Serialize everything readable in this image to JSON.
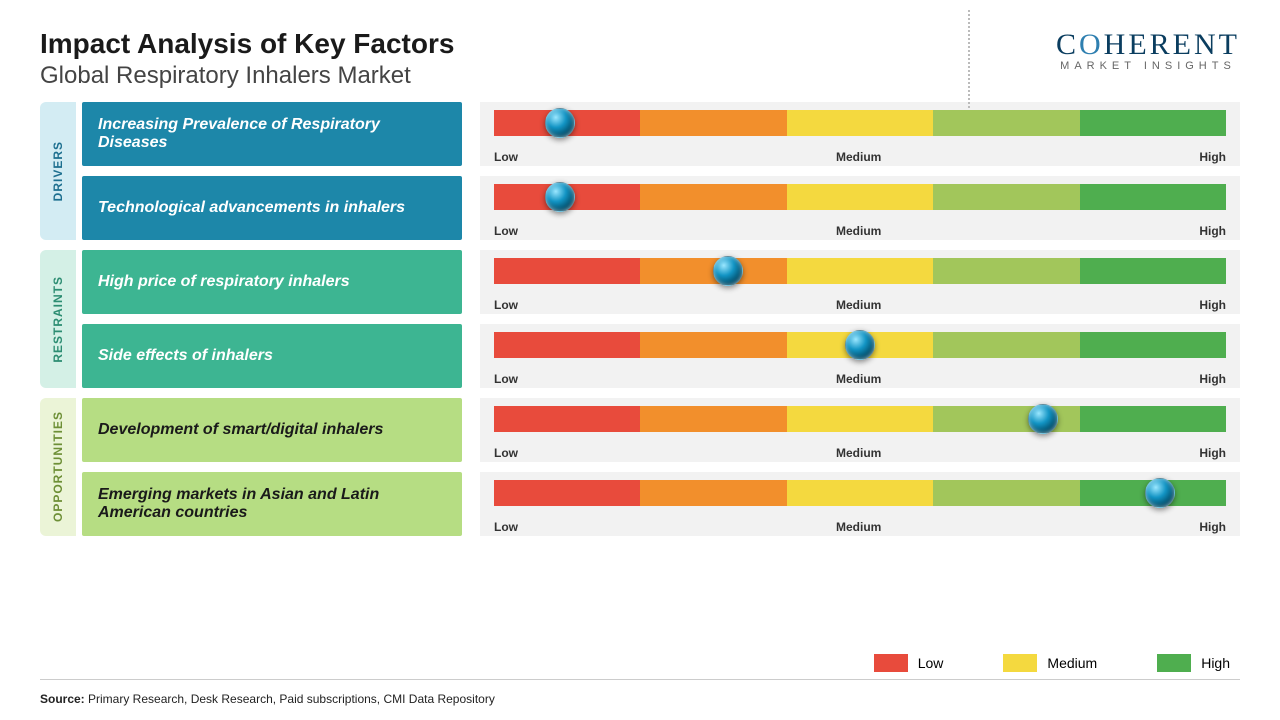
{
  "header": {
    "title": "Impact Analysis of Key Factors",
    "subtitle": "Global Respiratory Inhalers Market"
  },
  "logo": {
    "main": "COHERENT",
    "sub": "MARKET INSIGHTS"
  },
  "scale": {
    "low": "Low",
    "medium": "Medium",
    "high": "High",
    "segment_colors": [
      "#e84b3c",
      "#f28f2c",
      "#f4d93f",
      "#a2c65b",
      "#4fae4f"
    ]
  },
  "categories": [
    {
      "label": "DRIVERS",
      "tab_bg": "#d3ecf3",
      "tab_text": "#1d6f8f",
      "box_bg": "#1d87a9",
      "box_text": "#ffffff",
      "rows": [
        {
          "factor": "Increasing Prevalence of Respiratory Diseases",
          "marker_pct": 9
        },
        {
          "factor": "Technological advancements in inhalers",
          "marker_pct": 9
        }
      ]
    },
    {
      "label": "RESTRAINTS",
      "tab_bg": "#d4f0e6",
      "tab_text": "#2c8d72",
      "box_bg": "#3db592",
      "box_text": "#ffffff",
      "rows": [
        {
          "factor": "High price of respiratory inhalers",
          "marker_pct": 32
        },
        {
          "factor": "Side effects of inhalers",
          "marker_pct": 50
        }
      ]
    },
    {
      "label": "OPPORTUNITIES",
      "tab_bg": "#ebf4d7",
      "tab_text": "#6d8f36",
      "box_bg": "#b6dd83",
      "box_text": "#1a1a1a",
      "rows": [
        {
          "factor": "Development of smart/digital inhalers",
          "marker_pct": 75
        },
        {
          "factor": "Emerging markets in Asian and Latin American countries",
          "marker_pct": 91
        }
      ]
    }
  ],
  "legend": {
    "items": [
      {
        "label": "Low",
        "color": "#e84b3c"
      },
      {
        "label": "Medium",
        "color": "#f4d93f"
      },
      {
        "label": "High",
        "color": "#4fae4f"
      }
    ]
  },
  "source": {
    "prefix": "Source: ",
    "text": "Primary Research, Desk Research, Paid subscriptions, CMI Data Repository"
  }
}
